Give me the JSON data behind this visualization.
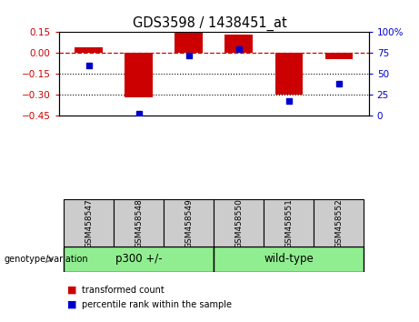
{
  "title": "GDS3598 / 1438451_at",
  "samples": [
    "GSM458547",
    "GSM458548",
    "GSM458549",
    "GSM458550",
    "GSM458551",
    "GSM458552"
  ],
  "red_bars": [
    0.04,
    -0.32,
    0.145,
    0.13,
    -0.3,
    -0.04
  ],
  "blue_dots": [
    60,
    3,
    72,
    80,
    18,
    38
  ],
  "group_ranges": [
    [
      0,
      2
    ],
    [
      3,
      5
    ]
  ],
  "group_labels": [
    "p300 +/-",
    "wild-type"
  ],
  "group_color": "#90ee90",
  "group_divider": 2.5,
  "genotype_label": "genotype/variation",
  "ylim_left": [
    -0.45,
    0.15
  ],
  "ylim_right": [
    0,
    100
  ],
  "yticks_left": [
    0.15,
    0.0,
    -0.15,
    -0.3,
    -0.45
  ],
  "yticks_right": [
    100,
    75,
    50,
    25,
    0
  ],
  "red_color": "#cc0000",
  "blue_color": "#0000cc",
  "bar_width": 0.55,
  "hline_0_color": "#cc0000",
  "hline_dotted_color": "black",
  "sample_box_color": "#cccccc",
  "legend_labels": [
    "transformed count",
    "percentile rank within the sample"
  ]
}
